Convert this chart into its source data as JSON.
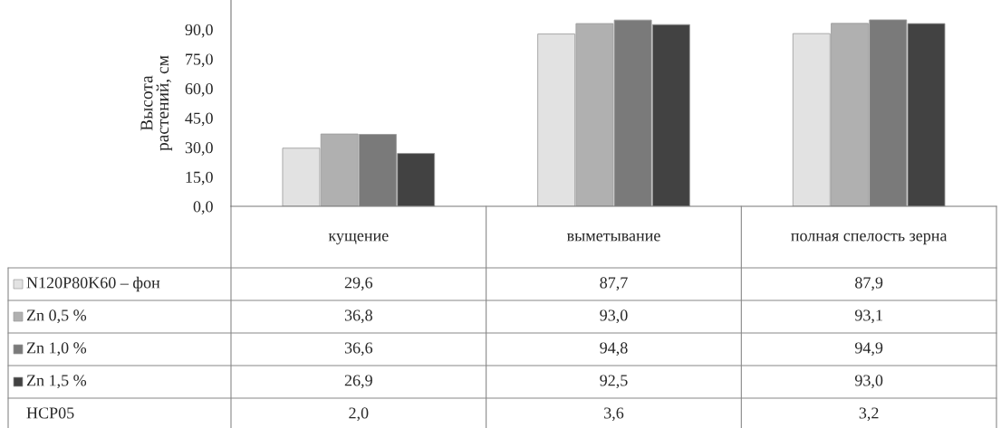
{
  "chart_data": {
    "type": "bar",
    "ylabel": "Высота\nрастений, см",
    "categories": [
      "кущение",
      "выметывание",
      "полная спелость зерна"
    ],
    "series": [
      {
        "name": "N120P80K60 – фон",
        "color": "#e2e2e2",
        "values": [
          29.6,
          87.7,
          87.9
        ],
        "value_labels": [
          "29,6",
          "87,7",
          "87,9"
        ]
      },
      {
        "name": "Zn 0,5 %",
        "color": "#b0b0b0",
        "values": [
          36.8,
          93.0,
          93.1
        ],
        "value_labels": [
          "36,8",
          "93,0",
          "93,1"
        ]
      },
      {
        "name": "Zn 1,0 %",
        "color": "#7a7a7a",
        "values": [
          36.6,
          94.8,
          94.9
        ],
        "value_labels": [
          "36,6",
          "94,8",
          "94,9"
        ]
      },
      {
        "name": "Zn 1,5 %",
        "color": "#424242",
        "values": [
          26.9,
          92.5,
          93.0
        ],
        "value_labels": [
          "26,9",
          "92,5",
          "93,0"
        ]
      }
    ],
    "annotations": [
      "НСР05",
      "2,0",
      "3,6",
      "3,2"
    ],
    "ylim": [
      0,
      105
    ],
    "yticks": [
      {
        "value": 0,
        "label": "0,0"
      },
      {
        "value": 15,
        "label": "15,0"
      },
      {
        "value": 30,
        "label": "30,0"
      },
      {
        "value": 45,
        "label": "45,0"
      },
      {
        "value": 60,
        "label": "60,0"
      },
      {
        "value": 75,
        "label": "75,0"
      },
      {
        "value": 90,
        "label": "90,0"
      }
    ],
    "grid": false,
    "legend": "bottom"
  }
}
